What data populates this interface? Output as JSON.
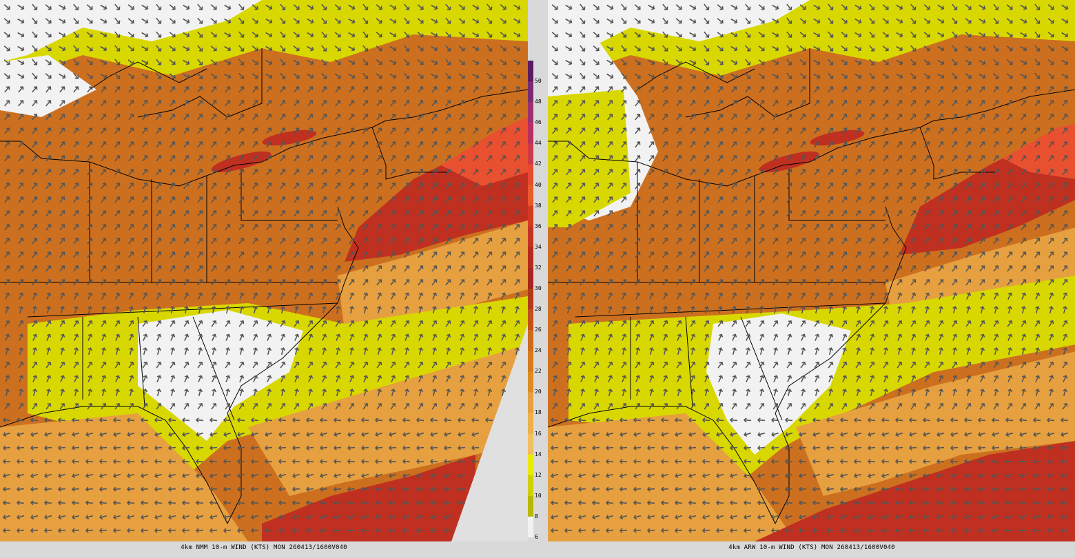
{
  "panels": [
    {
      "caption": "4km NMM 10-m WIND (KTS) MON 260413/1600V040"
    },
    {
      "caption": "4km ARW 10-m WIND (KTS) MON 260413/1600V040"
    }
  ],
  "colorbar": {
    "labels": [
      "50",
      "48",
      "46",
      "44",
      "42",
      "40",
      "38",
      "36",
      "34",
      "32",
      "30",
      "28",
      "26",
      "24",
      "22",
      "20",
      "18",
      "16",
      "14",
      "12",
      "10",
      "8",
      "6"
    ],
    "colors": [
      "#5a1a60",
      "#7a2a70",
      "#9c3070",
      "#b83060",
      "#cf3a48",
      "#e84a30",
      "#ea5a2a",
      "#d43a22",
      "#c23222",
      "#b42a1e",
      "#a82420",
      "#b03a1a",
      "#c2501a",
      "#cc6a1c",
      "#d57a1e",
      "#dd8c22",
      "#e6a040",
      "#eeb048",
      "#f0c060",
      "#eaea00",
      "#d0d000",
      "#b8b800",
      "#f2f2f2"
    ]
  },
  "map": {
    "water": "#e0e0e0",
    "land_colors": [
      "#d8d800",
      "#f0f0f0",
      "#e0a040",
      "#cc7020",
      "#b85a18",
      "#d04030",
      "#c03020",
      "#e85030"
    ],
    "arrow_color": "#555555",
    "border_color": "#000000"
  }
}
